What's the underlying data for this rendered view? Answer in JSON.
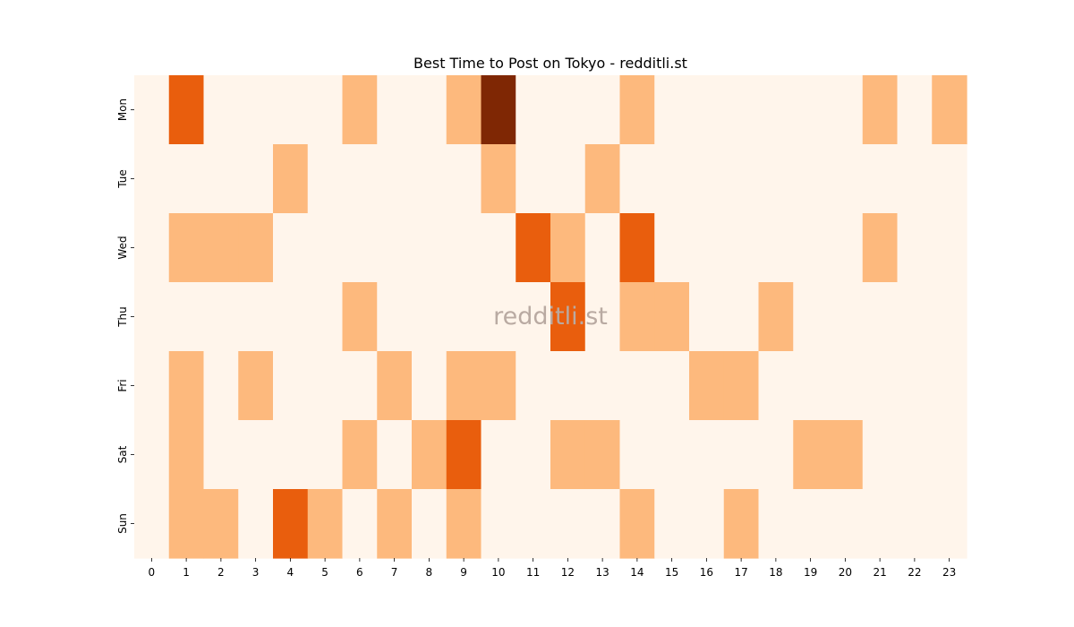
{
  "chart_data": {
    "type": "heatmap",
    "title": "Best Time to Post on Tokyo - redditli.st",
    "watermark": "redditli.st",
    "x_labels": [
      "0",
      "1",
      "2",
      "3",
      "4",
      "5",
      "6",
      "7",
      "8",
      "9",
      "10",
      "11",
      "12",
      "13",
      "14",
      "15",
      "16",
      "17",
      "18",
      "19",
      "20",
      "21",
      "22",
      "23"
    ],
    "y_labels": [
      "Mon",
      "Tue",
      "Wed",
      "Thu",
      "Fri",
      "Sat",
      "Sun"
    ],
    "xlabel": "",
    "ylabel": "",
    "values": [
      [
        0,
        2,
        0,
        0,
        0,
        0,
        1,
        0,
        0,
        1,
        3,
        0,
        0,
        0,
        1,
        0,
        0,
        0,
        0,
        0,
        0,
        1,
        0,
        1
      ],
      [
        0,
        0,
        0,
        0,
        1,
        0,
        0,
        0,
        0,
        0,
        1,
        0,
        0,
        1,
        0,
        0,
        0,
        0,
        0,
        0,
        0,
        0,
        0,
        0
      ],
      [
        0,
        1,
        1,
        1,
        0,
        0,
        0,
        0,
        0,
        0,
        0,
        2,
        1,
        0,
        2,
        0,
        0,
        0,
        0,
        0,
        0,
        1,
        0,
        0
      ],
      [
        0,
        0,
        0,
        0,
        0,
        0,
        1,
        0,
        0,
        0,
        0,
        0,
        2,
        0,
        1,
        1,
        0,
        0,
        1,
        0,
        0,
        0,
        0,
        0
      ],
      [
        0,
        1,
        0,
        1,
        0,
        0,
        0,
        1,
        0,
        1,
        1,
        0,
        0,
        0,
        0,
        0,
        1,
        1,
        0,
        0,
        0,
        0,
        0,
        0
      ],
      [
        0,
        1,
        0,
        0,
        0,
        0,
        1,
        0,
        1,
        2,
        0,
        0,
        1,
        1,
        0,
        0,
        0,
        0,
        0,
        1,
        1,
        0,
        0,
        0
      ],
      [
        0,
        1,
        1,
        0,
        2,
        1,
        0,
        1,
        0,
        1,
        0,
        0,
        0,
        0,
        1,
        0,
        0,
        1,
        0,
        0,
        0,
        0,
        0,
        0
      ]
    ],
    "colorscale": [
      "#fff5eb",
      "#fdb97d",
      "#e95e0d",
      "#7f2704"
    ],
    "colorbar": false,
    "grid": false
  }
}
